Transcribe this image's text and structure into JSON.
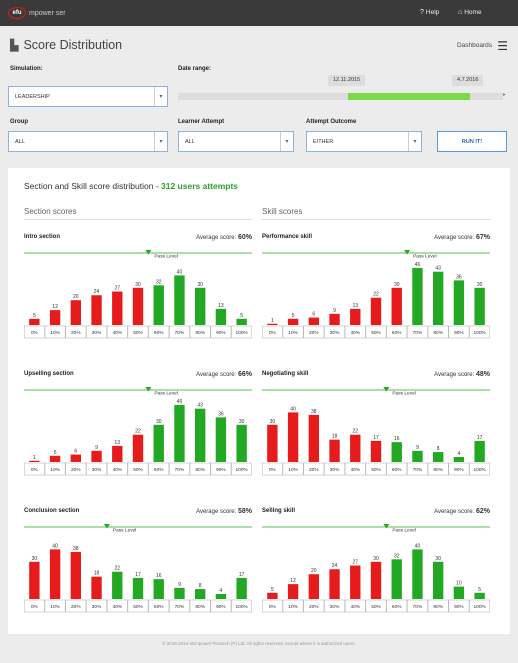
{
  "app": {
    "logo_mark": "efu",
    "logo_text": "mpower   ser"
  },
  "nav": {
    "help": "Help",
    "home": "Home"
  },
  "page": {
    "title": "Score Distribution",
    "dashboards": "Dashboards"
  },
  "filters": {
    "simulation_label": "Simulation:",
    "simulation_value": "LEADERSHIP",
    "date_range_label": "Date range:",
    "date_start": "12.11.2015",
    "date_end": "4.7.2016",
    "group_label": "Group",
    "group_value": "ALL",
    "learner_attempt_label": "Learner Attempt",
    "learner_attempt_value": "ALL",
    "attempt_outcome_label": "Attempt Outcome",
    "attempt_outcome_value": "EITHER",
    "run_button": "RUN IT!"
  },
  "summary": {
    "prefix": "Section and Skill score distribution - ",
    "highlight": "312 users attempts"
  },
  "columns": {
    "left": "Section scores",
    "right": "Skill scores"
  },
  "avg_label": "Average score:",
  "pass_level_label": "Pass Level",
  "colors": {
    "pass": "#22a822",
    "fail": "#e61b1b",
    "accent": "#2aa12a"
  },
  "chart_data": [
    {
      "type": "bar",
      "title": "Intro section",
      "average": "60%",
      "categories": [
        "0%",
        "10%",
        "20%",
        "30%",
        "40%",
        "50%",
        "60%",
        "70%",
        "80%",
        "90%",
        "100%"
      ],
      "values": [
        5,
        12,
        20,
        24,
        27,
        30,
        32,
        40,
        30,
        13,
        5
      ],
      "pass_level": "60%"
    },
    {
      "type": "bar",
      "title": "Performance skill",
      "average": "67%",
      "categories": [
        "0%",
        "10%",
        "20%",
        "30%",
        "40%",
        "50%",
        "60%",
        "70%",
        "80%",
        "90%",
        "100%"
      ],
      "values": [
        1,
        5,
        6,
        9,
        13,
        22,
        30,
        46,
        43,
        36,
        30
      ],
      "pass_level": "70%"
    },
    {
      "type": "bar",
      "title": "Upselling section",
      "average": "66%",
      "categories": [
        "0%",
        "10%",
        "20%",
        "30%",
        "40%",
        "50%",
        "60%",
        "70%",
        "80%",
        "90%",
        "100%"
      ],
      "values": [
        1,
        5,
        6,
        9,
        13,
        22,
        30,
        46,
        43,
        36,
        30
      ],
      "pass_level": "60%"
    },
    {
      "type": "bar",
      "title": "Negotiating skill",
      "average": "48%",
      "categories": [
        "0%",
        "10%",
        "20%",
        "30%",
        "40%",
        "50%",
        "60%",
        "70%",
        "80%",
        "90%",
        "100%"
      ],
      "values": [
        30,
        40,
        38,
        18,
        22,
        17,
        16,
        9,
        8,
        4,
        17
      ],
      "pass_level": "60%"
    },
    {
      "type": "bar",
      "title": "Conclusion section",
      "average": "58%",
      "categories": [
        "0%",
        "10%",
        "20%",
        "30%",
        "40%",
        "50%",
        "60%",
        "70%",
        "80%",
        "90%",
        "100%"
      ],
      "values": [
        30,
        40,
        38,
        18,
        22,
        17,
        16,
        9,
        8,
        4,
        17
      ],
      "pass_level": "40%"
    },
    {
      "type": "bar",
      "title": "Selling skill",
      "average": "62%",
      "categories": [
        "0%",
        "10%",
        "20%",
        "30%",
        "40%",
        "50%",
        "60%",
        "70%",
        "80%",
        "90%",
        "100%"
      ],
      "values": [
        5,
        12,
        20,
        24,
        27,
        30,
        32,
        40,
        30,
        10,
        5
      ],
      "pass_level": "60%"
    }
  ],
  "footer": "© 2016-2019 eEmpower Pinctech (P) Ltd. All rights reserved, except where it is authorized users."
}
